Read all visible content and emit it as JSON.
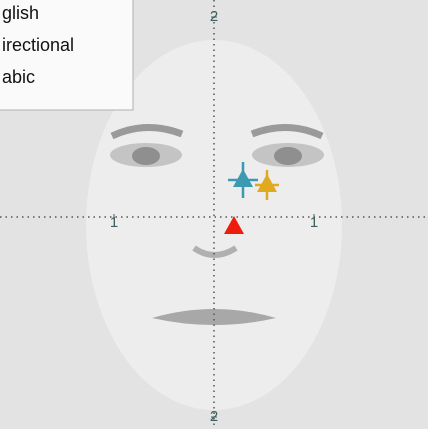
{
  "chart_data": {
    "type": "scatter",
    "xlim": [
      -2.14,
      2.14
    ],
    "ylim": [
      -2.12,
      2.17
    ],
    "xticks": [
      {
        "value": -1,
        "label": "1"
      },
      {
        "value": 1,
        "label": "1"
      }
    ],
    "yticks": [
      {
        "value": -2,
        "label": "2"
      },
      {
        "value": 2,
        "label": "2"
      }
    ],
    "marker": "triangle",
    "series": [
      {
        "name": "glish",
        "color": "#ee1c0c",
        "x": [
          0.2
        ],
        "y": [
          -0.1
        ],
        "xerr": [
          0.05
        ],
        "yerr": [
          0.05
        ]
      },
      {
        "name": "irectional",
        "color": "#3b9ab2",
        "x": [
          0.29
        ],
        "y": [
          0.37
        ],
        "xerr": [
          0.15
        ],
        "yerr": [
          0.18
        ]
      },
      {
        "name": "abic",
        "color": "#e1a91e",
        "x": [
          0.53
        ],
        "y": [
          0.32
        ],
        "xerr": [
          0.12
        ],
        "yerr": [
          0.15
        ]
      }
    ]
  }
}
